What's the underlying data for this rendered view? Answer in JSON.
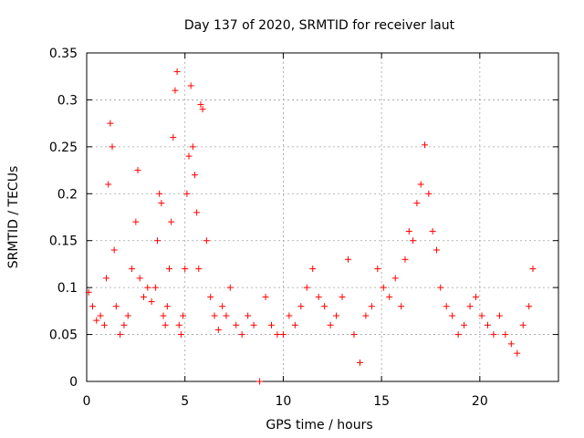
{
  "chart_data": {
    "type": "scatter",
    "title": "Day 137 of 2020, SRMTID for receiver laut",
    "xlabel": "GPS time / hours",
    "ylabel": "SRMTID / TECUs",
    "xlim": [
      0,
      24
    ],
    "ylim": [
      0,
      0.35
    ],
    "xticks": [
      0,
      5,
      10,
      15,
      20
    ],
    "yticks": [
      0,
      0.05,
      0.1,
      0.15,
      0.2,
      0.25,
      0.3,
      0.35
    ],
    "xtick_labels": [
      "0",
      "5",
      "10",
      "15",
      "20"
    ],
    "ytick_labels": [
      "0",
      "0.05",
      "0.1",
      "0.15",
      "0.2",
      "0.25",
      "0.3",
      "0.35"
    ],
    "grid": true,
    "marker": "+",
    "marker_color": "#ff0000",
    "series": [
      {
        "name": "SRMTID",
        "x": [
          0.1,
          0.3,
          0.5,
          0.7,
          0.9,
          1.0,
          1.1,
          1.2,
          1.3,
          1.4,
          1.5,
          1.7,
          1.9,
          2.1,
          2.3,
          2.5,
          2.6,
          2.7,
          2.9,
          3.1,
          3.3,
          3.5,
          3.6,
          3.7,
          3.8,
          3.9,
          4.0,
          4.1,
          4.2,
          4.3,
          4.4,
          4.5,
          4.6,
          4.7,
          4.8,
          4.9,
          5.0,
          5.1,
          5.2,
          5.3,
          5.4,
          5.5,
          5.6,
          5.7,
          5.8,
          5.9,
          6.1,
          6.3,
          6.5,
          6.7,
          6.9,
          7.1,
          7.3,
          7.6,
          7.9,
          8.2,
          8.5,
          8.8,
          9.1,
          9.4,
          9.7,
          10.0,
          10.3,
          10.6,
          10.9,
          11.2,
          11.5,
          11.8,
          12.1,
          12.4,
          12.7,
          13.0,
          13.3,
          13.6,
          13.9,
          14.2,
          14.5,
          14.8,
          15.1,
          15.4,
          15.7,
          16.0,
          16.2,
          16.4,
          16.6,
          16.8,
          17.0,
          17.2,
          17.4,
          17.6,
          17.8,
          18.0,
          18.3,
          18.6,
          18.9,
          19.2,
          19.5,
          19.8,
          20.1,
          20.4,
          20.7,
          21.0,
          21.3,
          21.6,
          21.9,
          22.2,
          22.5,
          22.7
        ],
        "y": [
          0.095,
          0.08,
          0.065,
          0.07,
          0.06,
          0.11,
          0.21,
          0.275,
          0.25,
          0.14,
          0.08,
          0.05,
          0.06,
          0.07,
          0.12,
          0.17,
          0.225,
          0.11,
          0.09,
          0.1,
          0.085,
          0.1,
          0.15,
          0.2,
          0.19,
          0.07,
          0.06,
          0.08,
          0.12,
          0.17,
          0.26,
          0.31,
          0.33,
          0.06,
          0.05,
          0.07,
          0.12,
          0.2,
          0.24,
          0.315,
          0.25,
          0.22,
          0.18,
          0.12,
          0.295,
          0.29,
          0.15,
          0.09,
          0.07,
          0.055,
          0.08,
          0.07,
          0.1,
          0.06,
          0.05,
          0.07,
          0.06,
          0.0,
          0.09,
          0.06,
          0.05,
          0.05,
          0.07,
          0.06,
          0.08,
          0.1,
          0.12,
          0.09,
          0.08,
          0.06,
          0.07,
          0.09,
          0.13,
          0.05,
          0.02,
          0.07,
          0.08,
          0.12,
          0.1,
          0.09,
          0.11,
          0.08,
          0.13,
          0.16,
          0.15,
          0.19,
          0.21,
          0.252,
          0.2,
          0.16,
          0.14,
          0.1,
          0.08,
          0.07,
          0.05,
          0.06,
          0.08,
          0.09,
          0.07,
          0.06,
          0.05,
          0.07,
          0.05,
          0.04,
          0.03,
          0.06,
          0.08,
          0.12
        ]
      }
    ]
  }
}
